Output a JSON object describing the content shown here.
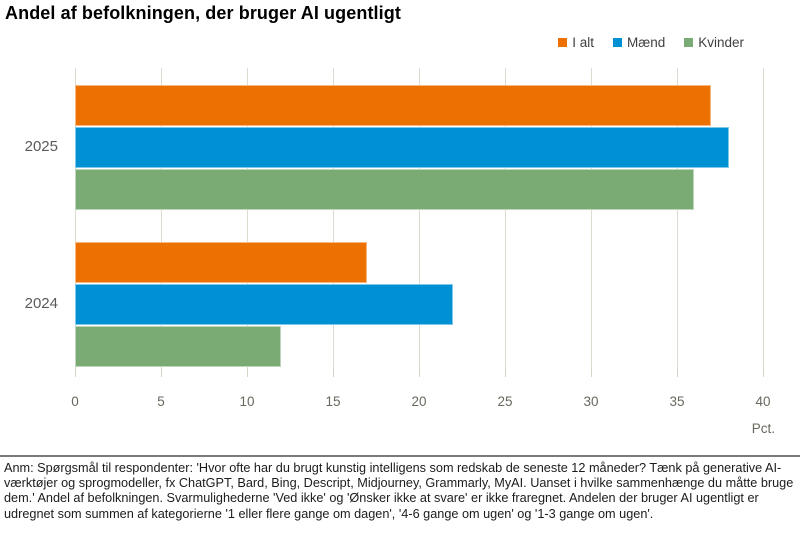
{
  "title": "Andel af befolkningen, der bruger AI ugentligt",
  "legend": [
    {
      "label": "I alt",
      "color": "#ec7100"
    },
    {
      "label": "Mænd",
      "color": "#0091d4"
    },
    {
      "label": "Kvinder",
      "color": "#7aab74"
    }
  ],
  "chart_data": {
    "type": "bar",
    "orientation": "horizontal",
    "title": "Andel af befolkningen, der bruger AI ugentligt",
    "categories": [
      "2025",
      "2024"
    ],
    "series": [
      {
        "name": "I alt",
        "color": "#ec7100",
        "values": [
          37,
          17
        ]
      },
      {
        "name": "Mænd",
        "color": "#0091d4",
        "values": [
          38,
          22
        ]
      },
      {
        "name": "Kvinder",
        "color": "#7aab74",
        "values": [
          36,
          12
        ]
      }
    ],
    "xlim": [
      0,
      40
    ],
    "xticks": [
      0,
      5,
      10,
      15,
      20,
      25,
      30,
      35,
      40
    ],
    "xlabel": "Pct.",
    "grid": true,
    "legend_position": "top-right"
  },
  "footnote": "Anm: Spørgsmål til respondenter: 'Hvor ofte har du brugt kunstig intelligens som redskab de seneste 12 måneder? Tænk på generative AI-værktøjer og sprogmodeller, fx ChatGPT, Bard, Bing, Descript, Midjourney, Grammarly, MyAI. Uanset i hvilke sammenhænge du måtte bruge dem.' Andel af befolkningen. Svarmulighederne 'Ved ikke' og 'Ønsker ikke at svare' er ikke fraregnet. Andelen der bruger AI ugentligt er udregnet som summen af kategorierne '1 eller flere gange om dagen', '4-6 gange om ugen' og '1-3 gange om ugen'."
}
